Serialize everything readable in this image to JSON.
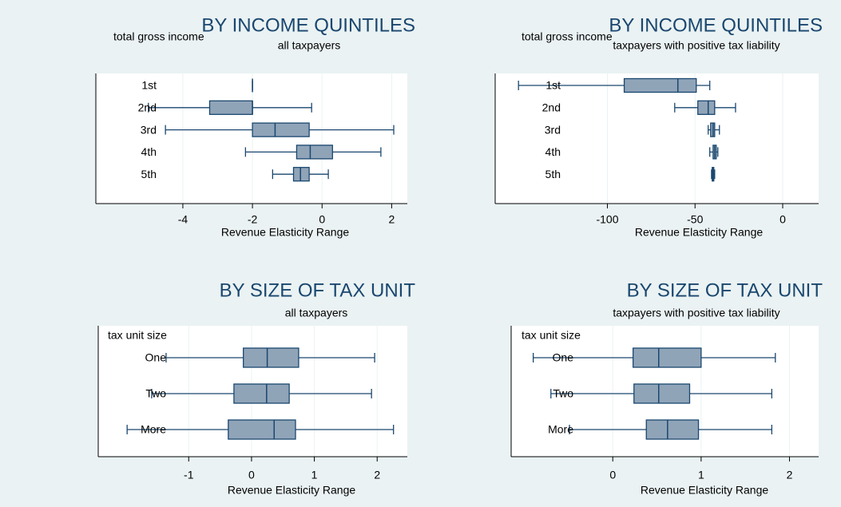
{
  "chart_data": [
    {
      "type": "box",
      "title": "BY INCOME QUINTILES",
      "subtitle": "all taxpayers",
      "group_label": "total gross income",
      "x_label": "Revenue Elasticity Range",
      "color": "#90a4b8",
      "categories": [
        "1st",
        "2nd",
        "3rd",
        "4th",
        "5th"
      ],
      "boxes": [
        {
          "min": -2.0,
          "q1": -2.0,
          "median": -2.0,
          "q3": -2.0,
          "max": -2.0
        },
        {
          "min": -4.99,
          "q1": -3.23,
          "median": -2.0,
          "q3": -2.0,
          "max": -0.3
        },
        {
          "min": -4.5,
          "q1": -2.0,
          "median": -1.35,
          "q3": -0.37,
          "max": 2.06
        },
        {
          "min": -2.2,
          "q1": -0.73,
          "median": -0.34,
          "q3": 0.3,
          "max": 1.69
        },
        {
          "min": -1.42,
          "q1": -0.82,
          "median": -0.62,
          "q3": -0.37,
          "max": 0.18
        }
      ],
      "xlim": [
        -6.5,
        2.45
      ],
      "xticks": [
        -4,
        -2,
        0,
        2
      ],
      "grid": true
    },
    {
      "type": "box",
      "title": "BY INCOME QUINTILES",
      "subtitle": "taxpayers with positive tax liability",
      "group_label": "total gross income",
      "x_label": "Revenue Elasticity Range",
      "color": "#90a4b8",
      "categories": [
        "1st",
        "2nd",
        "3rd",
        "4th",
        "5th"
      ],
      "boxes": [
        {
          "min": -150.7,
          "q1": -90.4,
          "median": -59.8,
          "q3": -49.3,
          "max": -41.6
        },
        {
          "min": -61.6,
          "q1": -48.4,
          "median": -42.5,
          "q3": -38.8,
          "max": -26.9
        },
        {
          "min": -42.5,
          "q1": -41.1,
          "median": -39.7,
          "q3": -38.8,
          "max": -36.1
        },
        {
          "min": -41.6,
          "q1": -39.7,
          "median": -38.8,
          "q3": -37.9,
          "max": -37.0
        },
        {
          "min": -40.6,
          "q1": -40.2,
          "median": -39.7,
          "q3": -39.3,
          "max": -38.8
        }
      ],
      "xlim": [
        -164,
        20.5
      ],
      "xticks": [
        -100,
        -50,
        0
      ],
      "grid": true
    },
    {
      "type": "box",
      "title": "BY SIZE OF TAX UNIT",
      "subtitle": "all taxpayers",
      "group_label": "tax unit size",
      "x_label": "Revenue Elasticity Range",
      "color": "#90a4b8",
      "categories": [
        "One",
        "Two",
        "More"
      ],
      "boxes": [
        {
          "min": -1.36,
          "q1": -0.13,
          "median": 0.25,
          "q3": 0.75,
          "max": 1.96
        },
        {
          "min": -1.59,
          "q1": -0.28,
          "median": 0.24,
          "q3": 0.6,
          "max": 1.91
        },
        {
          "min": -1.98,
          "q1": -0.37,
          "median": 0.36,
          "q3": 0.7,
          "max": 2.26
        }
      ],
      "xlim": [
        -2.44,
        2.48
      ],
      "xticks": [
        -1,
        0,
        1,
        2
      ],
      "grid": true
    },
    {
      "type": "box",
      "title": "BY SIZE OF TAX UNIT",
      "subtitle": "taxpayers with positive tax liability",
      "group_label": "tax unit size",
      "x_label": "Revenue Elasticity Range",
      "color": "#90a4b8",
      "categories": [
        "One",
        "Two",
        "More"
      ],
      "boxes": [
        {
          "min": -0.9,
          "q1": 0.23,
          "median": 0.52,
          "q3": 1.0,
          "max": 1.84
        },
        {
          "min": -0.7,
          "q1": 0.24,
          "median": 0.52,
          "q3": 0.87,
          "max": 1.8
        },
        {
          "min": -0.49,
          "q1": 0.38,
          "median": 0.62,
          "q3": 0.97,
          "max": 1.8
        }
      ],
      "xlim": [
        -1.15,
        2.33
      ],
      "xticks": [
        0,
        1,
        2
      ],
      "grid": true
    }
  ]
}
